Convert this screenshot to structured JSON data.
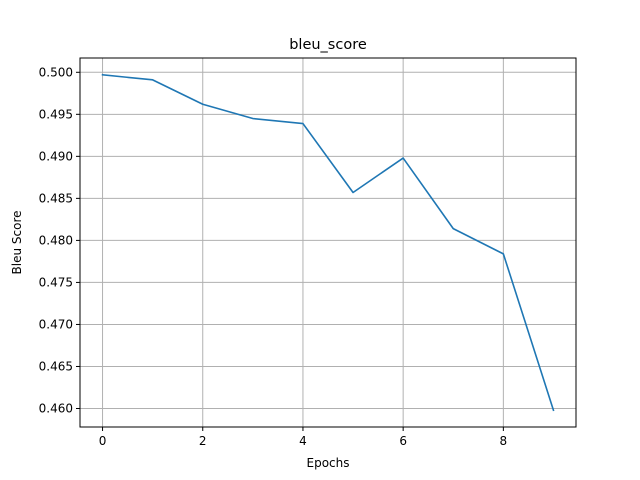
{
  "chart_data": {
    "type": "line",
    "title": "bleu_score",
    "xlabel": "Epochs",
    "ylabel": "Bleu Score",
    "x": [
      0,
      1,
      2,
      3,
      4,
      5,
      6,
      7,
      8,
      9
    ],
    "series": [
      {
        "values": [
          0.4997,
          0.4991,
          0.4962,
          0.4945,
          0.4939,
          0.4857,
          0.4898,
          0.4814,
          0.4784,
          0.4598
        ],
        "color": "#1f77b4"
      }
    ],
    "xlim": [
      -0.45,
      9.45
    ],
    "ylim": [
      0.4578,
      0.5017
    ],
    "xticks": [
      0,
      2,
      4,
      6,
      8
    ],
    "xtick_labels": [
      "0",
      "2",
      "4",
      "6",
      "8"
    ],
    "yticks": [
      0.46,
      0.465,
      0.47,
      0.475,
      0.48,
      0.485,
      0.49,
      0.495,
      0.5
    ],
    "ytick_labels": [
      "0.460",
      "0.465",
      "0.470",
      "0.475",
      "0.480",
      "0.485",
      "0.490",
      "0.495",
      "0.500"
    ],
    "grid": true,
    "legend": "none"
  }
}
